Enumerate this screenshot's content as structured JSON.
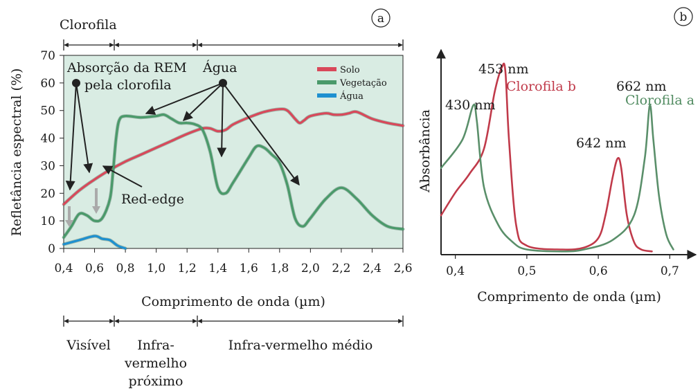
{
  "panel_a": {
    "label": "a",
    "top_region": "Clorofila",
    "ylabel": "Refletância espectral (%)",
    "xlabel": "Comprimento de onda (µm)",
    "annotations": {
      "absorption_line1": "Absorção da REM",
      "absorption_line2": "pela clorofila",
      "water": "Água",
      "red_edge": "Red-edge"
    },
    "regions": {
      "visible": "Visível",
      "nir_line1": "Infra-",
      "nir_line2": "vermelho",
      "nir_line3": "próximo",
      "mir": "Infra-vermelho médio"
    }
  },
  "panel_b": {
    "label": "b",
    "ylabel": "Absorbância",
    "xlabel": "Comprimento de onda (µm)",
    "peaks": {
      "p430": "430 nm",
      "p453": "453 nm",
      "p642": "642 nm",
      "p662": "662 nm"
    },
    "series_labels": {
      "chl_b": "Clorofila b",
      "chl_a": "Clorofila a"
    }
  },
  "chart_data": [
    {
      "type": "line",
      "xlabel": "Comprimento de onda (µm)",
      "ylabel": "Refletância espectral (%)",
      "xlim": [
        0.4,
        2.6
      ],
      "ylim": [
        0,
        70
      ],
      "x_ticks": [
        "0,4",
        "0,6",
        "0,8",
        "1,0",
        "1,2",
        "1,4",
        "1,6",
        "1,8",
        "2,0",
        "2,2",
        "2,4",
        "2,6"
      ],
      "y_ticks": [
        "0",
        "10",
        "20",
        "30",
        "40",
        "50",
        "60",
        "70"
      ],
      "legend_position": "top-right",
      "series": [
        {
          "name": "Solo",
          "color": "#d9485a",
          "points": [
            [
              0.4,
              16
            ],
            [
              0.5,
              21
            ],
            [
              0.6,
              25
            ],
            [
              0.7,
              28.5
            ],
            [
              0.8,
              31.5
            ],
            [
              0.9,
              34
            ],
            [
              1.0,
              36.5
            ],
            [
              1.1,
              39
            ],
            [
              1.2,
              41.5
            ],
            [
              1.3,
              43.5
            ],
            [
              1.35,
              43.5
            ],
            [
              1.4,
              42.5
            ],
            [
              1.45,
              43
            ],
            [
              1.5,
              45
            ],
            [
              1.6,
              47.5
            ],
            [
              1.7,
              49.5
            ],
            [
              1.8,
              50.5
            ],
            [
              1.85,
              50
            ],
            [
              1.9,
              47
            ],
            [
              1.93,
              45.5
            ],
            [
              1.96,
              46.5
            ],
            [
              2.0,
              48
            ],
            [
              2.1,
              49
            ],
            [
              2.15,
              48.5
            ],
            [
              2.2,
              48.5
            ],
            [
              2.25,
              49
            ],
            [
              2.3,
              49.5
            ],
            [
              2.4,
              47
            ],
            [
              2.5,
              45.5
            ],
            [
              2.6,
              44.5
            ]
          ]
        },
        {
          "name": "Vegetação",
          "color": "#4a9a6a",
          "points": [
            [
              0.4,
              4
            ],
            [
              0.45,
              8
            ],
            [
              0.5,
              12.5
            ],
            [
              0.55,
              12
            ],
            [
              0.6,
              10
            ],
            [
              0.65,
              11
            ],
            [
              0.7,
              18
            ],
            [
              0.72,
              28
            ],
            [
              0.74,
              40
            ],
            [
              0.76,
              46.5
            ],
            [
              0.8,
              48
            ],
            [
              0.9,
              47.5
            ],
            [
              1.0,
              48
            ],
            [
              1.05,
              48.5
            ],
            [
              1.1,
              47
            ],
            [
              1.15,
              45.5
            ],
            [
              1.2,
              45.5
            ],
            [
              1.25,
              45
            ],
            [
              1.3,
              43
            ],
            [
              1.35,
              35
            ],
            [
              1.4,
              22
            ],
            [
              1.45,
              20
            ],
            [
              1.5,
              24
            ],
            [
              1.6,
              33
            ],
            [
              1.65,
              37
            ],
            [
              1.7,
              36.5
            ],
            [
              1.75,
              34
            ],
            [
              1.8,
              31
            ],
            [
              1.85,
              23
            ],
            [
              1.9,
              11
            ],
            [
              1.95,
              8
            ],
            [
              2.0,
              11
            ],
            [
              2.1,
              18
            ],
            [
              2.2,
              22
            ],
            [
              2.3,
              18
            ],
            [
              2.4,
              12
            ],
            [
              2.5,
              8
            ],
            [
              2.6,
              7
            ]
          ]
        },
        {
          "name": "Água",
          "color": "#1e90d0",
          "points": [
            [
              0.4,
              1.5
            ],
            [
              0.5,
              3
            ],
            [
              0.6,
              4.5
            ],
            [
              0.65,
              3.5
            ],
            [
              0.7,
              3
            ],
            [
              0.75,
              1
            ],
            [
              0.8,
              0
            ]
          ]
        }
      ]
    },
    {
      "type": "line",
      "xlabel": "Comprimento de onda (µm)",
      "ylabel": "Absorbância",
      "xlim": [
        0.38,
        0.72
      ],
      "x_ticks": [
        "0,4",
        "0,5",
        "0,6",
        "0,7"
      ],
      "series": [
        {
          "name": "Clorofila b",
          "color": "#c03a4a",
          "points": [
            [
              0.38,
              0.2
            ],
            [
              0.4,
              0.32
            ],
            [
              0.42,
              0.42
            ],
            [
              0.44,
              0.55
            ],
            [
              0.455,
              0.85
            ],
            [
              0.465,
              0.98
            ],
            [
              0.47,
              0.96
            ],
            [
              0.475,
              0.6
            ],
            [
              0.485,
              0.15
            ],
            [
              0.5,
              0.04
            ],
            [
              0.55,
              0.02
            ],
            [
              0.58,
              0.03
            ],
            [
              0.6,
              0.08
            ],
            [
              0.61,
              0.2
            ],
            [
              0.62,
              0.4
            ],
            [
              0.627,
              0.5
            ],
            [
              0.632,
              0.45
            ],
            [
              0.64,
              0.2
            ],
            [
              0.65,
              0.06
            ],
            [
              0.66,
              0.02
            ],
            [
              0.675,
              0.01
            ]
          ]
        },
        {
          "name": "Clorofila a",
          "color": "#5a8f6a",
          "points": [
            [
              0.38,
              0.45
            ],
            [
              0.41,
              0.6
            ],
            [
              0.425,
              0.78
            ],
            [
              0.43,
              0.7
            ],
            [
              0.44,
              0.35
            ],
            [
              0.46,
              0.15
            ],
            [
              0.48,
              0.06
            ],
            [
              0.5,
              0.02
            ],
            [
              0.55,
              0.01
            ],
            [
              0.58,
              0.02
            ],
            [
              0.62,
              0.07
            ],
            [
              0.65,
              0.2
            ],
            [
              0.665,
              0.5
            ],
            [
              0.672,
              0.78
            ],
            [
              0.677,
              0.6
            ],
            [
              0.685,
              0.3
            ],
            [
              0.695,
              0.1
            ],
            [
              0.705,
              0.02
            ]
          ]
        }
      ]
    }
  ]
}
